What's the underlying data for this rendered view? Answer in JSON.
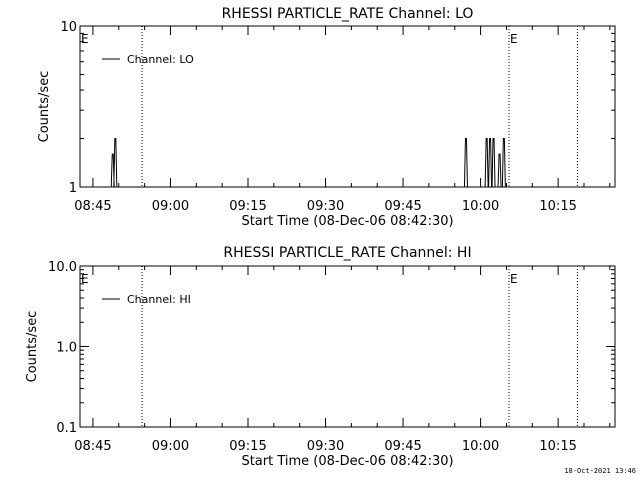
{
  "chart_data": [
    {
      "type": "line",
      "title": "RHESSI PARTICLE_RATE Channel: LO",
      "xlabel": "Start Time (08-Dec-06 08:42:30)",
      "ylabel": "Counts/sec",
      "y_scale": "log",
      "ylim": [
        1,
        10
      ],
      "y_ticks": [
        {
          "v": 1,
          "label": "1"
        },
        {
          "v": 10,
          "label": "10"
        }
      ],
      "xlim": [
        "08:42:30",
        "10:26:00"
      ],
      "x_ticks": [
        "08:45",
        "09:00",
        "09:15",
        "09:30",
        "09:45",
        "10:00",
        "10:15"
      ],
      "legend": {
        "label": "Channel: LO",
        "position": "top-left"
      },
      "event_lines": [
        {
          "time": "08:54:30",
          "label": ""
        },
        {
          "time": "10:05:30",
          "label": "E"
        },
        {
          "time": "10:18:45",
          "label": ""
        }
      ],
      "corner_label": "E",
      "series": [
        {
          "name": "Channel: LO",
          "spikes": [
            {
              "time": "08:48:50",
              "value": 1.6
            },
            {
              "time": "08:49:20",
              "value": 2.0
            },
            {
              "time": "09:57:10",
              "value": 2.0
            },
            {
              "time": "10:01:10",
              "value": 2.0
            },
            {
              "time": "10:01:50",
              "value": 2.0
            },
            {
              "time": "10:02:30",
              "value": 2.0
            },
            {
              "time": "10:03:40",
              "value": 1.6
            },
            {
              "time": "10:04:30",
              "value": 2.0
            }
          ]
        }
      ]
    },
    {
      "type": "line",
      "title": "RHESSI PARTICLE_RATE Channel: HI",
      "xlabel": "Start Time (08-Dec-06 08:42:30)",
      "ylabel": "Counts/sec",
      "y_scale": "log",
      "ylim": [
        0.1,
        10
      ],
      "y_ticks": [
        {
          "v": 0.1,
          "label": "0.1"
        },
        {
          "v": 1,
          "label": "1.0"
        },
        {
          "v": 10,
          "label": "10.0"
        }
      ],
      "xlim": [
        "08:42:30",
        "10:26:00"
      ],
      "x_ticks": [
        "08:45",
        "09:00",
        "09:15",
        "09:30",
        "09:45",
        "10:00",
        "10:15"
      ],
      "legend": {
        "label": "Channel: HI",
        "position": "top-left"
      },
      "event_lines": [
        {
          "time": "08:54:30",
          "label": ""
        },
        {
          "time": "10:05:30",
          "label": "E"
        },
        {
          "time": "10:18:45",
          "label": ""
        }
      ],
      "corner_label": "E",
      "series": [
        {
          "name": "Channel: HI",
          "spikes": []
        }
      ]
    }
  ],
  "footer": {
    "timestamp": "18-Oct-2021 13:46"
  }
}
